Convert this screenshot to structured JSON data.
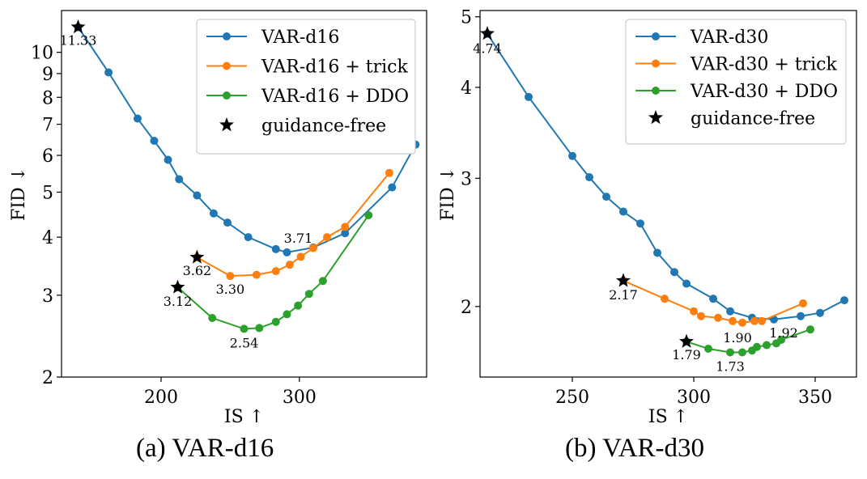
{
  "chart_data": [
    {
      "type": "line",
      "caption": "(a) VAR-d16",
      "xlabel": "IS ↑",
      "ylabel": "FID ↓",
      "xlim": [
        128,
        392
      ],
      "ylim": [
        2,
        12.3
      ],
      "yscale": "log",
      "xticks": [
        200,
        300
      ],
      "yticks": [
        2,
        3,
        4,
        5,
        6,
        7,
        8,
        9,
        10
      ],
      "legend_position": "top-right",
      "grid": false,
      "series": [
        {
          "name": "VAR-d16",
          "color": "#1f77b4",
          "marker": "circle",
          "points": [
            [
              140,
              11.33
            ],
            [
              162,
              9.05
            ],
            [
              183,
              7.2
            ],
            [
              195,
              6.45
            ],
            [
              205,
              5.87
            ],
            [
              213,
              5.33
            ],
            [
              226,
              4.92
            ],
            [
              238,
              4.5
            ],
            [
              248,
              4.3
            ],
            [
              263,
              4.0
            ],
            [
              283,
              3.77
            ],
            [
              291,
              3.71
            ],
            [
              310,
              3.8
            ],
            [
              333,
              4.08
            ],
            [
              367,
              5.12
            ],
            [
              384,
              6.33
            ]
          ]
        },
        {
          "name": "VAR-d16 + trick",
          "color": "#ff7f0e",
          "marker": "circle",
          "points": [
            [
              226,
              3.62
            ],
            [
              250,
              3.3
            ],
            [
              269,
              3.32
            ],
            [
              283,
              3.38
            ],
            [
              293,
              3.49
            ],
            [
              301,
              3.63
            ],
            [
              310,
              3.79
            ],
            [
              320,
              4.0
            ],
            [
              333,
              4.21
            ],
            [
              365,
              5.5
            ]
          ]
        },
        {
          "name": "VAR-d16 + DDO",
          "color": "#2ca02c",
          "marker": "circle",
          "points": [
            [
              212,
              3.12
            ],
            [
              237,
              2.68
            ],
            [
              260,
              2.54
            ],
            [
              271,
              2.55
            ],
            [
              283,
              2.63
            ],
            [
              291,
              2.73
            ],
            [
              299,
              2.85
            ],
            [
              307,
              3.02
            ],
            [
              317,
              3.22
            ],
            [
              350,
              4.46
            ]
          ]
        },
        {
          "name": "guidance-free",
          "color": "#000000",
          "marker": "star",
          "points": [
            [
              140,
              11.33
            ],
            [
              226,
              3.62
            ],
            [
              212,
              3.12
            ]
          ]
        }
      ],
      "annotations": [
        {
          "text": "11.33",
          "x": 140,
          "y": 11.33
        },
        {
          "text": "3.71",
          "x": 291,
          "y": 3.71
        },
        {
          "text": "3.62",
          "x": 226,
          "y": 3.62
        },
        {
          "text": "3.30",
          "x": 250,
          "y": 3.3
        },
        {
          "text": "3.12",
          "x": 212,
          "y": 3.12
        },
        {
          "text": "2.54",
          "x": 260,
          "y": 2.54
        }
      ]
    },
    {
      "type": "line",
      "caption": "(b) VAR-d30",
      "xlabel": "IS ↑",
      "ylabel": "FID ↓",
      "xlim": [
        212,
        367
      ],
      "ylim": [
        1.6,
        5.1
      ],
      "yscale": "log",
      "xticks": [
        250,
        300,
        350
      ],
      "yticks": [
        2,
        3,
        4,
        5
      ],
      "legend_position": "top-right",
      "grid": false,
      "series": [
        {
          "name": "VAR-d30",
          "color": "#1f77b4",
          "marker": "circle",
          "points": [
            [
              215,
              4.74
            ],
            [
              232,
              3.88
            ],
            [
              250,
              3.22
            ],
            [
              257,
              3.01
            ],
            [
              264,
              2.83
            ],
            [
              271,
              2.7
            ],
            [
              278,
              2.6
            ],
            [
              285,
              2.37
            ],
            [
              292,
              2.23
            ],
            [
              297,
              2.15
            ],
            [
              308,
              2.05
            ],
            [
              315,
              1.97
            ],
            [
              324,
              1.93
            ],
            [
              333,
              1.92
            ],
            [
              344,
              1.94
            ],
            [
              352,
              1.96
            ],
            [
              362,
              2.04
            ]
          ]
        },
        {
          "name": "VAR-d30 + trick",
          "color": "#ff7f0e",
          "marker": "circle",
          "points": [
            [
              271,
              2.17
            ],
            [
              288,
              2.05
            ],
            [
              300,
              1.97
            ],
            [
              303,
              1.94
            ],
            [
              310,
              1.93
            ],
            [
              316,
              1.91
            ],
            [
              320,
              1.9
            ],
            [
              325,
              1.91
            ],
            [
              328,
              1.91
            ],
            [
              345,
              2.02
            ]
          ]
        },
        {
          "name": "VAR-d30 + DDO",
          "color": "#2ca02c",
          "marker": "circle",
          "points": [
            [
              297,
              1.79
            ],
            [
              306,
              1.75
            ],
            [
              315,
              1.73
            ],
            [
              320,
              1.73
            ],
            [
              324,
              1.74
            ],
            [
              326,
              1.76
            ],
            [
              330,
              1.77
            ],
            [
              334,
              1.78
            ],
            [
              336,
              1.8
            ],
            [
              348,
              1.86
            ]
          ]
        },
        {
          "name": "guidance-free",
          "color": "#000000",
          "marker": "star",
          "points": [
            [
              215,
              4.74
            ],
            [
              271,
              2.17
            ],
            [
              297,
              1.79
            ]
          ]
        }
      ],
      "annotations": [
        {
          "text": "4.74",
          "x": 215,
          "y": 4.74
        },
        {
          "text": "2.17",
          "x": 271,
          "y": 2.17
        },
        {
          "text": "1.90",
          "x": 320,
          "y": 1.9
        },
        {
          "text": "1.92",
          "x": 333,
          "y": 1.92
        },
        {
          "text": "1.79",
          "x": 297,
          "y": 1.79
        },
        {
          "text": "1.73",
          "x": 315,
          "y": 1.73
        }
      ]
    }
  ]
}
